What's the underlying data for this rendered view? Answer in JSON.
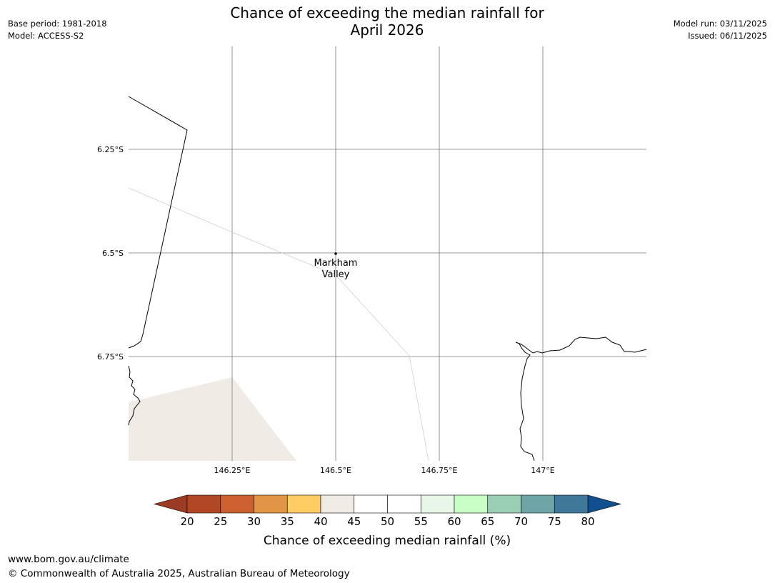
{
  "title": {
    "line1": "Chance of exceeding the median rainfall for",
    "line2": "April 2026"
  },
  "info_left": {
    "base_period": "Base period: 1981-2018",
    "model": "Model: ACCESS-S2"
  },
  "info_right": {
    "model_run": "Model run: 03/11/2025",
    "issued": "Issued: 06/11/2025"
  },
  "map": {
    "lat_labels": [
      "6.25°S",
      "6.5°S",
      "6.75°S"
    ],
    "lon_labels": [
      "146.25°E",
      "146.5°E",
      "146.75°E",
      "147°E"
    ],
    "place": {
      "name_line1": "Markham",
      "name_line2": "Valley",
      "lon": 146.5,
      "lat": -6.5
    },
    "extent": {
      "lon_min": 146.0,
      "lon_max": 147.25,
      "lat_min": -7.0,
      "lat_max": -6.0
    },
    "shaded_region": {
      "category": "40-45",
      "color": "#f0ebe4"
    }
  },
  "colorbar": {
    "label": "Chance of exceeding median rainfall (%)",
    "ticks": [
      "20",
      "25",
      "30",
      "35",
      "40",
      "45",
      "50",
      "55",
      "60",
      "65",
      "70",
      "75",
      "80"
    ],
    "under_color": "#9c3b24",
    "over_color": "#124f8e",
    "colors": [
      "#b24725",
      "#cc6130",
      "#e29544",
      "#fdcc63",
      "#f0ebe4",
      "#ffffff",
      "#ffffff",
      "#e8f6e7",
      "#c8fdc6",
      "#9bcfb5",
      "#6ea5a6",
      "#3f7898"
    ]
  },
  "footer": {
    "url": "www.bom.gov.au/climate",
    "copyright": "© Commonwealth of Australia 2025, Australian Bureau of Meteorology"
  }
}
